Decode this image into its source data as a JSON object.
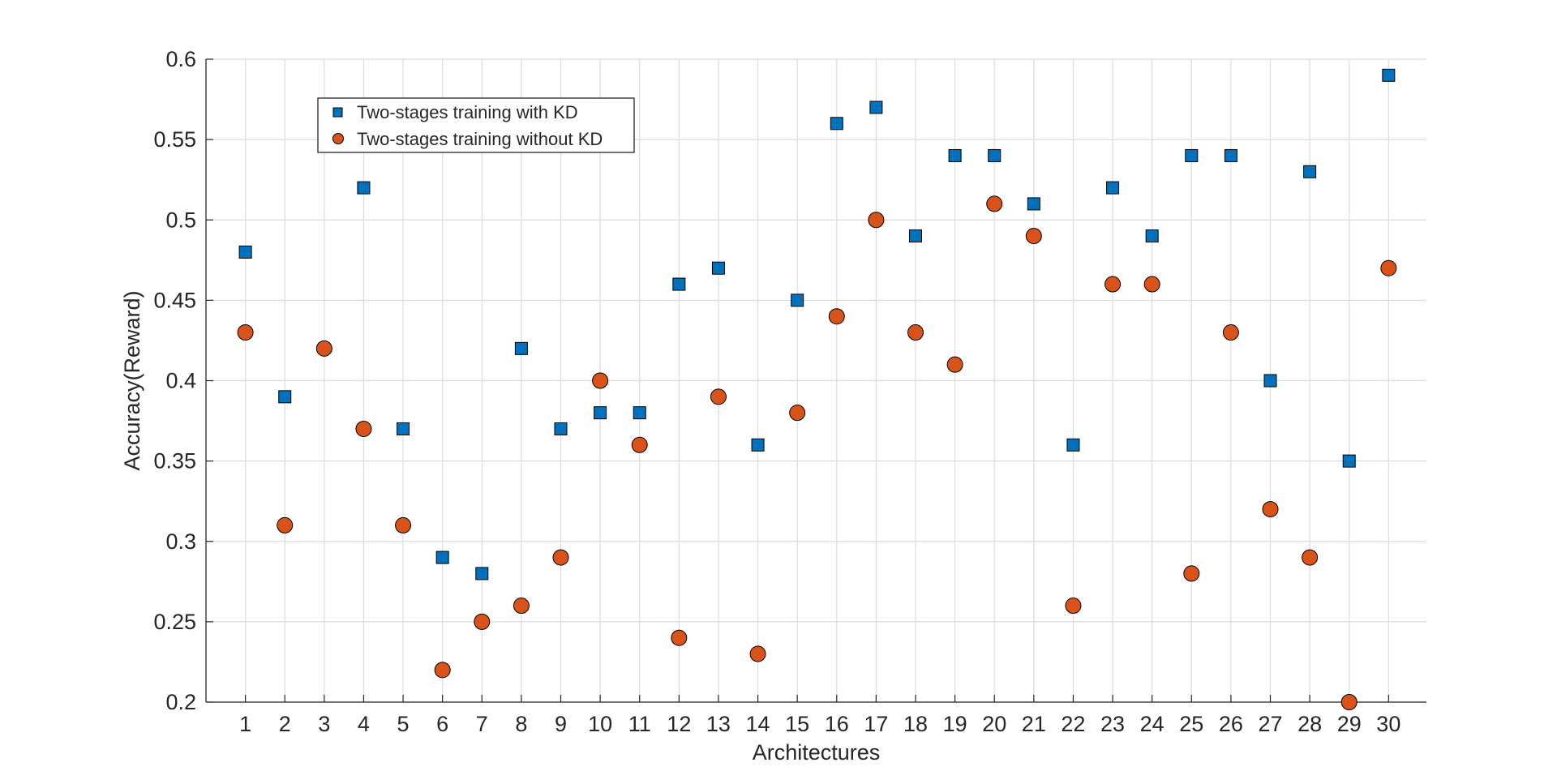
{
  "chart_data": {
    "type": "scatter",
    "title": "",
    "xlabel": "Architectures",
    "ylabel": "Accuracy(Reward)",
    "xlim": [
      0,
      30
    ],
    "ylim": [
      0.2,
      0.6
    ],
    "grid": true,
    "legend_position": "top-left",
    "x": [
      1,
      2,
      3,
      4,
      5,
      6,
      7,
      8,
      9,
      10,
      11,
      12,
      13,
      14,
      15,
      16,
      17,
      18,
      19,
      20,
      21,
      22,
      23,
      24,
      25,
      26,
      27,
      28,
      29,
      30
    ],
    "x_tick_labels": [
      "1",
      "2",
      "3",
      "4",
      "5",
      "6",
      "7",
      "8",
      "9",
      "10",
      "11",
      "12",
      "13",
      "14",
      "15",
      "16",
      "17",
      "18",
      "19",
      "20",
      "21",
      "22",
      "23",
      "24",
      "25",
      "26",
      "27",
      "28",
      "29",
      "30"
    ],
    "y_ticks": [
      0.2,
      0.25,
      0.3,
      0.35,
      0.4,
      0.45,
      0.5,
      0.55,
      0.6
    ],
    "y_tick_labels": [
      "0.2",
      "0.25",
      "0.3",
      "0.35",
      "0.4",
      "0.45",
      "0.5",
      "0.55",
      "0.6"
    ],
    "series": [
      {
        "name": "Two-stages training with KD",
        "marker": "square",
        "color": "#0072BD",
        "x": [
          1,
          2,
          4,
          5,
          6,
          7,
          8,
          9,
          10,
          11,
          12,
          13,
          14,
          15,
          16,
          17,
          18,
          19,
          20,
          21,
          22,
          23,
          24,
          25,
          26,
          27,
          28,
          29,
          30
        ],
        "values": [
          0.48,
          0.39,
          0.52,
          0.37,
          0.29,
          0.28,
          0.42,
          0.37,
          0.38,
          0.38,
          0.46,
          0.47,
          0.36,
          0.45,
          0.56,
          0.57,
          0.49,
          0.54,
          0.54,
          0.51,
          0.36,
          0.52,
          0.49,
          0.54,
          0.54,
          0.4,
          0.53,
          0.35,
          0.59
        ]
      },
      {
        "name": "Two-stages training without KD",
        "marker": "circle",
        "color": "#D95319",
        "x": [
          1,
          2,
          3,
          4,
          5,
          6,
          7,
          8,
          9,
          10,
          11,
          12,
          13,
          14,
          15,
          16,
          17,
          18,
          19,
          20,
          21,
          22,
          23,
          24,
          25,
          26,
          27,
          28,
          29,
          30
        ],
        "values": [
          0.43,
          0.31,
          0.42,
          0.37,
          0.31,
          0.22,
          0.25,
          0.26,
          0.29,
          0.4,
          0.36,
          0.24,
          0.39,
          0.23,
          0.38,
          0.44,
          0.5,
          0.43,
          0.41,
          0.51,
          0.49,
          0.26,
          0.46,
          0.46,
          0.28,
          0.43,
          0.32,
          0.29,
          0.2,
          0.47
        ]
      }
    ]
  }
}
